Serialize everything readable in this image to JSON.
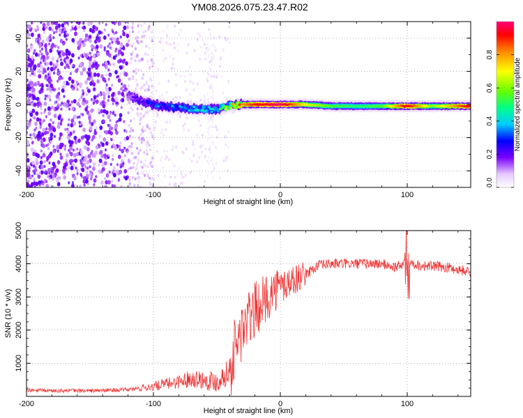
{
  "title": "YM08.2026.075.23.47.R02",
  "chart_data": [
    {
      "type": "heatmap",
      "title": "YM08.2026.075.23.47.R02",
      "xlabel": "Height of straight line (km)",
      "ylabel": "Frequency (Hz)",
      "xlim": [
        -200,
        150
      ],
      "ylim": [
        -50,
        50
      ],
      "x_ticks": [
        "-200",
        "-100",
        "0",
        "100"
      ],
      "y_ticks": [
        "-40",
        "-20",
        "0",
        "20",
        "40"
      ],
      "colorbar": {
        "label": "Normalized spectral amplitude",
        "range": [
          0,
          1
        ],
        "ticks": [
          "0.0",
          "0.2",
          "0.4",
          "0.6",
          "0.8"
        ]
      },
      "signal_line_frequency_hz": {
        "x": [
          -120,
          -100,
          -80,
          -60,
          -50,
          -40,
          -30,
          -20,
          -10,
          0,
          20,
          40,
          60,
          80,
          100,
          120,
          150
        ],
        "y": [
          5,
          0,
          -2,
          -3,
          -3,
          -1,
          0,
          0,
          0,
          0,
          0,
          -1,
          -1,
          -1,
          -1,
          -1,
          -1
        ]
      },
      "signal_amplitude": {
        "x": [
          -120,
          -100,
          -80,
          -60,
          -50,
          -40,
          -30,
          -20,
          -10,
          0,
          20,
          40,
          60,
          80,
          100,
          120,
          150
        ],
        "y": [
          0.15,
          0.3,
          0.35,
          0.4,
          0.45,
          0.6,
          0.8,
          0.9,
          0.95,
          1.0,
          0.7,
          0.55,
          0.5,
          0.55,
          0.95,
          0.6,
          0.95
        ]
      },
      "noise_region_km": [
        -200,
        -50
      ]
    },
    {
      "type": "line",
      "title": "",
      "xlabel": "Height of straight line (km)",
      "ylabel": "SNR (10 * v/v)",
      "xlim": [
        -200,
        150
      ],
      "ylim": [
        0,
        5000
      ],
      "x_ticks": [
        "-200",
        "-100",
        "0",
        "100"
      ],
      "y_ticks": [
        "1000",
        "2000",
        "3000",
        "4000",
        "5000"
      ],
      "series": [
        {
          "name": "SNR",
          "color": "#ee3333",
          "x": [
            -200,
            -150,
            -120,
            -100,
            -80,
            -70,
            -60,
            -50,
            -45,
            -40,
            -35,
            -30,
            -25,
            -20,
            -15,
            -10,
            -5,
            0,
            10,
            20,
            30,
            40,
            60,
            80,
            90,
            95,
            100,
            105,
            110,
            130,
            150
          ],
          "y": [
            180,
            170,
            200,
            300,
            450,
            550,
            500,
            450,
            600,
            800,
            1500,
            2000,
            2300,
            2600,
            2800,
            3000,
            3200,
            3300,
            3500,
            3700,
            3950,
            4000,
            4000,
            4000,
            3900,
            3950,
            4100,
            4000,
            3950,
            3900,
            3750
          ]
        }
      ]
    }
  ]
}
